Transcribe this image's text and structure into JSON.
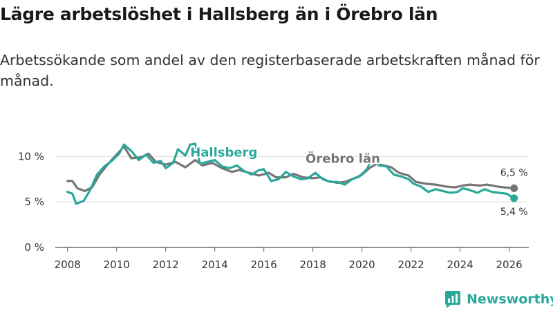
{
  "header": {
    "title": "Lägre arbetslöshet i Hallsberg än i Örebro län",
    "subtitle": "Arbetssökande som andel av den registerbaserade arbetskraften månad för månad."
  },
  "brand": {
    "name": "Newsworthy",
    "color": "#2aa89a"
  },
  "chart_data": {
    "type": "line",
    "title": "Lägre arbetslöshet i Hallsberg än i Örebro län",
    "subtitle": "Arbetssökande som andel av den registerbaserade arbetskraften månad för månad.",
    "xlabel": "",
    "ylabel": "",
    "xlim": [
      2007.5,
      2026.8
    ],
    "ylim": [
      0,
      12
    ],
    "x_ticks": [
      2008,
      2010,
      2012,
      2014,
      2016,
      2018,
      2020,
      2022,
      2024,
      2026
    ],
    "x_tick_labels": [
      "2008",
      "2010",
      "2012",
      "2014",
      "2016",
      "2018",
      "2020",
      "2022",
      "2024",
      "2026"
    ],
    "y_ticks": [
      0,
      5,
      10
    ],
    "y_tick_labels": [
      "0 %",
      "5 %",
      "10 %"
    ],
    "grid": true,
    "series": [
      {
        "name": "Örebro län",
        "color": "#757575",
        "end_label": "6,5 %",
        "points": [
          [
            2008.0,
            7.3
          ],
          [
            2008.2,
            7.3
          ],
          [
            2008.4,
            6.5
          ],
          [
            2008.7,
            6.2
          ],
          [
            2009.0,
            6.6
          ],
          [
            2009.3,
            8.0
          ],
          [
            2009.6,
            9.0
          ],
          [
            2010.0,
            10.2
          ],
          [
            2010.3,
            11.1
          ],
          [
            2010.6,
            9.8
          ],
          [
            2011.0,
            9.9
          ],
          [
            2011.3,
            10.3
          ],
          [
            2011.6,
            9.4
          ],
          [
            2012.0,
            9.1
          ],
          [
            2012.4,
            9.4
          ],
          [
            2012.8,
            8.8
          ],
          [
            2013.2,
            9.6
          ],
          [
            2013.5,
            9.0
          ],
          [
            2013.9,
            9.3
          ],
          [
            2014.3,
            8.7
          ],
          [
            2014.7,
            8.3
          ],
          [
            2015.0,
            8.5
          ],
          [
            2015.4,
            8.2
          ],
          [
            2015.8,
            7.9
          ],
          [
            2016.2,
            8.2
          ],
          [
            2016.5,
            7.7
          ],
          [
            2016.9,
            7.7
          ],
          [
            2017.2,
            8.1
          ],
          [
            2017.6,
            7.7
          ],
          [
            2018.0,
            7.6
          ],
          [
            2018.3,
            7.7
          ],
          [
            2018.6,
            7.3
          ],
          [
            2019.0,
            7.1
          ],
          [
            2019.3,
            7.2
          ],
          [
            2019.7,
            7.6
          ],
          [
            2020.0,
            8.0
          ],
          [
            2020.3,
            8.7
          ],
          [
            2020.6,
            9.2
          ],
          [
            2020.9,
            9.0
          ],
          [
            2021.2,
            8.8
          ],
          [
            2021.5,
            8.2
          ],
          [
            2021.9,
            7.9
          ],
          [
            2022.2,
            7.2
          ],
          [
            2022.6,
            7.0
          ],
          [
            2023.0,
            6.9
          ],
          [
            2023.4,
            6.7
          ],
          [
            2023.8,
            6.6
          ],
          [
            2024.1,
            6.8
          ],
          [
            2024.4,
            6.9
          ],
          [
            2024.8,
            6.8
          ],
          [
            2025.1,
            6.9
          ],
          [
            2025.5,
            6.7
          ],
          [
            2025.8,
            6.6
          ],
          [
            2026.2,
            6.5
          ]
        ]
      },
      {
        "name": "Hallsberg",
        "color": "#2aa89a",
        "end_label": "5,4 %",
        "points": [
          [
            2008.0,
            6.1
          ],
          [
            2008.2,
            5.9
          ],
          [
            2008.35,
            4.8
          ],
          [
            2008.65,
            5.1
          ],
          [
            2008.9,
            6.2
          ],
          [
            2009.2,
            8.0
          ],
          [
            2009.5,
            8.9
          ],
          [
            2009.8,
            9.5
          ],
          [
            2010.1,
            10.3
          ],
          [
            2010.3,
            11.3
          ],
          [
            2010.6,
            10.6
          ],
          [
            2010.9,
            9.6
          ],
          [
            2011.2,
            10.2
          ],
          [
            2011.5,
            9.3
          ],
          [
            2011.8,
            9.5
          ],
          [
            2012.0,
            8.7
          ],
          [
            2012.3,
            9.3
          ],
          [
            2012.5,
            10.8
          ],
          [
            2012.8,
            10.1
          ],
          [
            2013.0,
            11.3
          ],
          [
            2013.2,
            11.4
          ],
          [
            2013.4,
            9.2
          ],
          [
            2013.7,
            9.4
          ],
          [
            2014.0,
            9.6
          ],
          [
            2014.3,
            8.9
          ],
          [
            2014.6,
            8.7
          ],
          [
            2014.9,
            9.0
          ],
          [
            2015.2,
            8.4
          ],
          [
            2015.5,
            8.0
          ],
          [
            2015.8,
            8.5
          ],
          [
            2016.0,
            8.6
          ],
          [
            2016.3,
            7.3
          ],
          [
            2016.6,
            7.5
          ],
          [
            2016.9,
            8.3
          ],
          [
            2017.2,
            7.8
          ],
          [
            2017.5,
            7.5
          ],
          [
            2017.8,
            7.6
          ],
          [
            2018.1,
            8.2
          ],
          [
            2018.4,
            7.5
          ],
          [
            2018.7,
            7.2
          ],
          [
            2019.0,
            7.2
          ],
          [
            2019.3,
            6.9
          ],
          [
            2019.6,
            7.5
          ],
          [
            2019.9,
            7.8
          ],
          [
            2020.2,
            8.6
          ],
          [
            2020.4,
            9.7
          ],
          [
            2020.7,
            9.0
          ],
          [
            2021.0,
            8.9
          ],
          [
            2021.3,
            8.0
          ],
          [
            2021.6,
            7.8
          ],
          [
            2021.9,
            7.5
          ],
          [
            2022.1,
            7.0
          ],
          [
            2022.4,
            6.7
          ],
          [
            2022.7,
            6.1
          ],
          [
            2023.0,
            6.4
          ],
          [
            2023.3,
            6.2
          ],
          [
            2023.6,
            6.0
          ],
          [
            2023.9,
            6.1
          ],
          [
            2024.1,
            6.5
          ],
          [
            2024.4,
            6.3
          ],
          [
            2024.7,
            6.0
          ],
          [
            2025.0,
            6.4
          ],
          [
            2025.3,
            6.1
          ],
          [
            2025.6,
            6.0
          ],
          [
            2025.9,
            5.9
          ],
          [
            2026.2,
            5.4
          ]
        ]
      }
    ]
  }
}
